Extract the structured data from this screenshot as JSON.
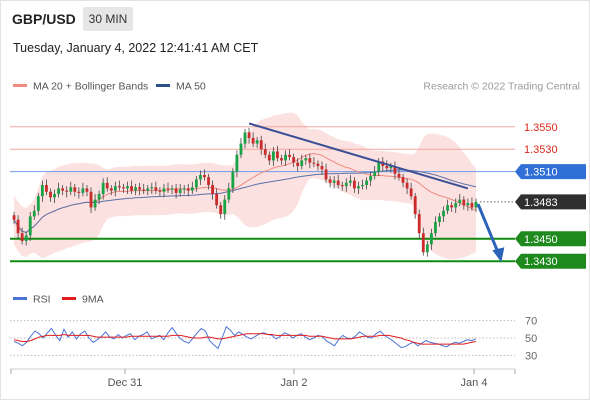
{
  "header": {
    "symbol": "GBP/USD",
    "timeframe": "30 MIN",
    "datetime": "Tuesday, January 4, 2022 12:41:41 AM CET"
  },
  "chart_data": [
    {
      "type": "candlestick",
      "title": "GBP/USD",
      "legend": [
        {
          "label": "MA 20 + Bollinger Bands",
          "color": "#f08a80"
        },
        {
          "label": "MA 50",
          "color": "#2c4f8a"
        }
      ],
      "legend_placement": "top-left",
      "attribution": "Research © 2022 Trading Central",
      "ylim": [
        1.3415,
        1.3565
      ],
      "y_price_labels": [
        {
          "value": 1.355,
          "label": "1.3550",
          "style": "red-line"
        },
        {
          "value": 1.353,
          "label": "1.3530",
          "style": "red-line"
        },
        {
          "value": 1.351,
          "label": "1.3510",
          "style": "blue-badge"
        },
        {
          "value": 1.3483,
          "label": "1.3483",
          "style": "current-badge"
        },
        {
          "value": 1.345,
          "label": "1.3450",
          "style": "green-badge"
        },
        {
          "value": 1.343,
          "label": "1.3430",
          "style": "green-badge"
        }
      ],
      "xticks": [
        "Dec 31",
        "Jan 2",
        "Jan 4"
      ],
      "trendline": {
        "x": [
          58,
          112
        ],
        "y": [
          1.3553,
          1.3495
        ]
      },
      "forecast_arrow": {
        "x": [
          115,
          121
        ],
        "y": [
          1.3481,
          1.343
        ]
      },
      "close": [
        1.3467,
        1.3455,
        1.3448,
        1.3453,
        1.347,
        1.3475,
        1.3488,
        1.3498,
        1.3492,
        1.3487,
        1.349,
        1.3495,
        1.3493,
        1.3492,
        1.3496,
        1.3492,
        1.3491,
        1.3495,
        1.3492,
        1.3478,
        1.3485,
        1.349,
        1.35,
        1.3495,
        1.3493,
        1.3497,
        1.3496,
        1.3495,
        1.3497,
        1.3493,
        1.3496,
        1.3494,
        1.3493,
        1.3495,
        1.3496,
        1.3493,
        1.3492,
        1.3495,
        1.3494,
        1.3495,
        1.3491,
        1.3494,
        1.3495,
        1.3493,
        1.3496,
        1.3503,
        1.3507,
        1.3505,
        1.3498,
        1.349,
        1.348,
        1.3472,
        1.3485,
        1.3495,
        1.351,
        1.3525,
        1.3535,
        1.3545,
        1.354,
        1.3535,
        1.3538,
        1.353,
        1.3525,
        1.352,
        1.3528,
        1.3522,
        1.352,
        1.3525,
        1.3523,
        1.3518,
        1.3515,
        1.352,
        1.3522,
        1.3518,
        1.3517,
        1.3515,
        1.3512,
        1.3503,
        1.35,
        1.3502,
        1.3498,
        1.3497,
        1.35,
        1.3502,
        1.3495,
        1.3497,
        1.3498,
        1.3502,
        1.3506,
        1.351,
        1.3519,
        1.3515,
        1.3513,
        1.3515,
        1.3508,
        1.3505,
        1.35,
        1.3495,
        1.3488,
        1.3472,
        1.3455,
        1.3438,
        1.3445,
        1.3455,
        1.3465,
        1.347,
        1.3475,
        1.348,
        1.3478,
        1.3482,
        1.3485,
        1.348,
        1.3482,
        1.3478,
        1.3483
      ]
    },
    {
      "type": "line",
      "title": "RSI",
      "legend": [
        {
          "label": "RSI",
          "color": "#4b74d6"
        },
        {
          "label": "9MA",
          "color": "#e11d1d"
        }
      ],
      "ylim": [
        20,
        80
      ],
      "yticks": [
        30,
        50,
        70
      ],
      "reference_lines": [
        30,
        50,
        70
      ],
      "series": [
        {
          "name": "RSI",
          "values": [
            46,
            44,
            41,
            45,
            52,
            58,
            55,
            50,
            56,
            61,
            53,
            47,
            60,
            51,
            57,
            49,
            55,
            58,
            50,
            45,
            48,
            52,
            57,
            51,
            49,
            54,
            50,
            53,
            55,
            48,
            52,
            54,
            57,
            49,
            51,
            53,
            48,
            56,
            62,
            55,
            49,
            46,
            44,
            50,
            56,
            61,
            58,
            47,
            42,
            38,
            50,
            63,
            59,
            53,
            57,
            54,
            51,
            49,
            52,
            55,
            56,
            54,
            53,
            49,
            52,
            56,
            54,
            50,
            53,
            55,
            51,
            48,
            50,
            53,
            52,
            47,
            44,
            41,
            48,
            53,
            50,
            49,
            52,
            57,
            54,
            51,
            50,
            55,
            58,
            53,
            50,
            47,
            43,
            39,
            40,
            43,
            45,
            41,
            44,
            47,
            45,
            44,
            43,
            41,
            40,
            43,
            45,
            44,
            46,
            48,
            47,
            49
          ]
        },
        {
          "name": "9MA",
          "values": [
            48,
            47,
            46,
            46,
            47,
            49,
            51,
            52,
            53,
            53,
            53,
            53,
            54,
            53,
            53,
            53,
            53,
            53,
            53,
            52,
            51,
            51,
            51,
            51,
            51,
            51,
            51,
            51,
            52,
            52,
            52,
            52,
            52,
            52,
            52,
            52,
            52,
            52,
            53,
            53,
            53,
            52,
            51,
            50,
            50,
            50,
            51,
            51,
            50,
            49,
            49,
            50,
            51,
            52,
            53,
            54,
            55,
            55,
            55,
            55,
            55,
            54,
            54,
            53,
            53,
            53,
            53,
            53,
            53,
            53,
            53,
            52,
            52,
            52,
            52,
            51,
            50,
            49,
            49,
            49,
            49,
            49,
            50,
            51,
            52,
            52,
            52,
            52,
            53,
            53,
            53,
            52,
            51,
            50,
            48,
            47,
            45,
            44,
            43,
            43,
            43,
            43,
            43,
            43,
            43,
            43,
            43,
            43,
            43,
            44,
            45,
            46
          ]
        }
      ]
    }
  ]
}
